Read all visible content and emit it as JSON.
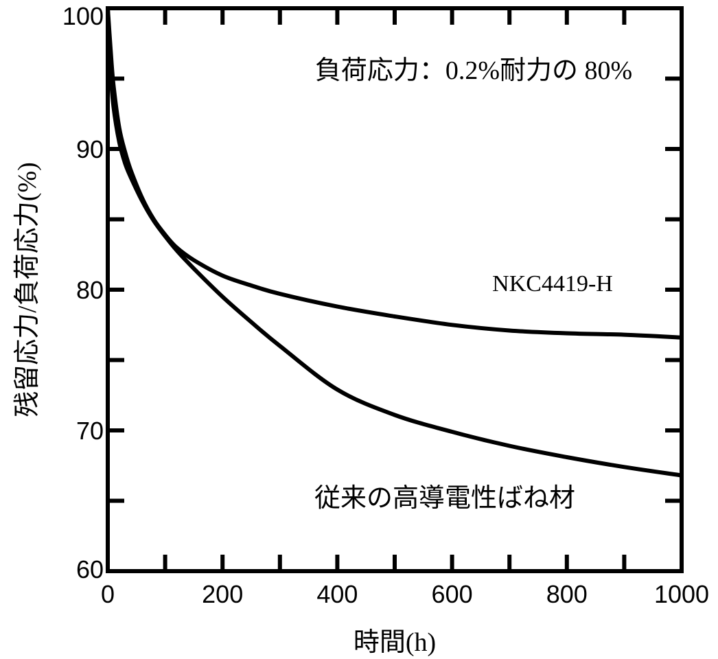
{
  "chart_data": {
    "type": "line",
    "title": "",
    "annotation": "負荷応力：0.2%耐力の 80%",
    "xlabel": "時間(h)",
    "ylabel": "残留応力/負荷応力(%)",
    "xlim": [
      0,
      1000
    ],
    "ylim": [
      60,
      100
    ],
    "x_ticks": [
      0,
      200,
      400,
      600,
      800,
      1000
    ],
    "y_ticks": [
      60,
      70,
      80,
      90,
      100
    ],
    "x_tick_labels": [
      "0",
      "200",
      "400",
      "600",
      "800",
      "1000"
    ],
    "y_tick_labels": [
      "60",
      "70",
      "80",
      "90",
      "100"
    ],
    "x_minor_step": 100,
    "y_minor_step": 5,
    "grid": false,
    "legend": "none",
    "series": [
      {
        "name": "NKC4419-H",
        "x": [
          0,
          5,
          10,
          20,
          30,
          40,
          60,
          80,
          100,
          120,
          150,
          200,
          250,
          300,
          400,
          500,
          600,
          700,
          800,
          900,
          1000
        ],
        "y": [
          100,
          97,
          94.5,
          91.5,
          89.8,
          88.5,
          86.5,
          85.0,
          83.9,
          83.0,
          82.1,
          81.0,
          80.3,
          79.7,
          78.8,
          78.1,
          77.5,
          77.1,
          76.9,
          76.8,
          76.6
        ]
      },
      {
        "name": "従来の高導電性ばね材",
        "x": [
          0,
          5,
          10,
          20,
          30,
          40,
          60,
          80,
          100,
          120,
          150,
          200,
          250,
          300,
          400,
          500,
          600,
          700,
          800,
          900,
          1000
        ],
        "y": [
          100,
          95.5,
          93,
          90.5,
          89.0,
          88.0,
          86.3,
          84.9,
          83.8,
          82.8,
          81.5,
          79.5,
          77.7,
          76.0,
          72.9,
          71.1,
          69.9,
          68.9,
          68.1,
          67.4,
          66.8
        ]
      }
    ],
    "series_labels": [
      "NKC4419-H",
      "従来の高導電性ばね材"
    ]
  }
}
